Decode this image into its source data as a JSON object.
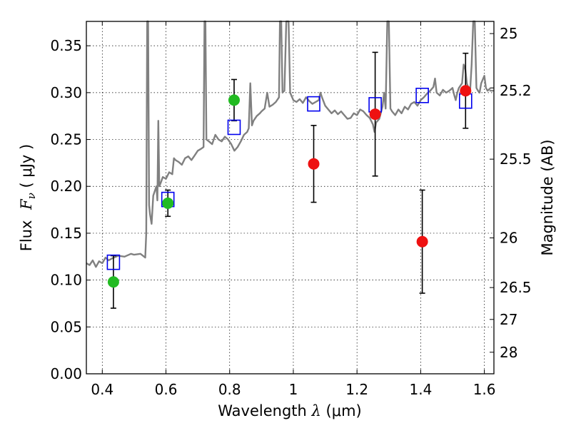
{
  "chart_data": {
    "type": "scatter",
    "xlabel_prefix": "Wavelength",
    "xlabel_symbol": "λ",
    "xlabel_suffix": "(μm)",
    "ylabel_prefix": "Flux",
    "ylabel_symbol": "F",
    "ylabel_sub": "ν",
    "ylabel_suffix": "(  μJy )",
    "y2label": "Magnitude (AB)",
    "xlim": [
      0.35,
      1.63
    ],
    "ylim": [
      0.0,
      0.376
    ],
    "xticks": [
      0.4,
      0.6,
      0.8,
      1.0,
      1.2,
      1.4,
      1.6
    ],
    "xtick_labels": [
      "0.4",
      "0.6",
      "0.8",
      "1",
      "1.2",
      "1.4",
      "1.6"
    ],
    "yticks": [
      0.0,
      0.05,
      0.1,
      0.15,
      0.2,
      0.25,
      0.3,
      0.35
    ],
    "ytick_labels": [
      "0.00",
      "0.05",
      "0.10",
      "0.15",
      "0.20",
      "0.25",
      "0.30",
      "0.35"
    ],
    "y2ticks": [
      {
        "label": "25",
        "flux": 0.363
      },
      {
        "label": "25.2",
        "flux": 0.302
      },
      {
        "label": "25.5",
        "flux": 0.229
      },
      {
        "label": "26",
        "flux": 0.145
      },
      {
        "label": "26.5",
        "flux": 0.092
      },
      {
        "label": "27",
        "flux": 0.058
      },
      {
        "label": "28",
        "flux": 0.023
      }
    ],
    "colors": {
      "model": "#808080",
      "green": "#22bb22",
      "red": "#ee1111",
      "blue": "#0000ee",
      "error": "#000000",
      "grid": "#000000"
    },
    "model_spectrum": [
      [
        0.35,
        0.118
      ],
      [
        0.36,
        0.116
      ],
      [
        0.37,
        0.121
      ],
      [
        0.38,
        0.114
      ],
      [
        0.39,
        0.12
      ],
      [
        0.4,
        0.118
      ],
      [
        0.41,
        0.124
      ],
      [
        0.42,
        0.121
      ],
      [
        0.43,
        0.123
      ],
      [
        0.45,
        0.126
      ],
      [
        0.47,
        0.125
      ],
      [
        0.49,
        0.128
      ],
      [
        0.5,
        0.127
      ],
      [
        0.52,
        0.128
      ],
      [
        0.535,
        0.124
      ],
      [
        0.538,
        0.15
      ],
      [
        0.541,
        0.376
      ],
      [
        0.544,
        0.376
      ],
      [
        0.547,
        0.18
      ],
      [
        0.55,
        0.17
      ],
      [
        0.555,
        0.16
      ],
      [
        0.56,
        0.19
      ],
      [
        0.565,
        0.195
      ],
      [
        0.57,
        0.2
      ],
      [
        0.573,
        0.185
      ],
      [
        0.576,
        0.27
      ],
      [
        0.579,
        0.2
      ],
      [
        0.585,
        0.205
      ],
      [
        0.59,
        0.21
      ],
      [
        0.6,
        0.208
      ],
      [
        0.61,
        0.215
      ],
      [
        0.62,
        0.213
      ],
      [
        0.625,
        0.23
      ],
      [
        0.63,
        0.228
      ],
      [
        0.64,
        0.226
      ],
      [
        0.65,
        0.223
      ],
      [
        0.66,
        0.23
      ],
      [
        0.67,
        0.232
      ],
      [
        0.68,
        0.228
      ],
      [
        0.69,
        0.233
      ],
      [
        0.7,
        0.238
      ],
      [
        0.71,
        0.24
      ],
      [
        0.718,
        0.242
      ],
      [
        0.721,
        0.376
      ],
      [
        0.724,
        0.376
      ],
      [
        0.727,
        0.25
      ],
      [
        0.735,
        0.248
      ],
      [
        0.745,
        0.245
      ],
      [
        0.755,
        0.255
      ],
      [
        0.765,
        0.25
      ],
      [
        0.775,
        0.248
      ],
      [
        0.785,
        0.253
      ],
      [
        0.795,
        0.25
      ],
      [
        0.805,
        0.245
      ],
      [
        0.815,
        0.238
      ],
      [
        0.825,
        0.242
      ],
      [
        0.835,
        0.248
      ],
      [
        0.845,
        0.255
      ],
      [
        0.855,
        0.258
      ],
      [
        0.86,
        0.262
      ],
      [
        0.865,
        0.31
      ],
      [
        0.87,
        0.265
      ],
      [
        0.875,
        0.27
      ],
      [
        0.885,
        0.275
      ],
      [
        0.895,
        0.278
      ],
      [
        0.9,
        0.28
      ],
      [
        0.91,
        0.283
      ],
      [
        0.918,
        0.3
      ],
      [
        0.925,
        0.285
      ],
      [
        0.935,
        0.287
      ],
      [
        0.945,
        0.29
      ],
      [
        0.955,
        0.295
      ],
      [
        0.958,
        0.376
      ],
      [
        0.962,
        0.376
      ],
      [
        0.966,
        0.3
      ],
      [
        0.972,
        0.302
      ],
      [
        0.978,
        0.376
      ],
      [
        0.985,
        0.376
      ],
      [
        0.99,
        0.3
      ],
      [
        1.0,
        0.292
      ],
      [
        1.01,
        0.29
      ],
      [
        1.02,
        0.293
      ],
      [
        1.03,
        0.289
      ],
      [
        1.04,
        0.295
      ],
      [
        1.05,
        0.291
      ],
      [
        1.06,
        0.288
      ],
      [
        1.07,
        0.29
      ],
      [
        1.08,
        0.292
      ],
      [
        1.085,
        0.3
      ],
      [
        1.09,
        0.295
      ],
      [
        1.1,
        0.286
      ],
      [
        1.11,
        0.282
      ],
      [
        1.12,
        0.278
      ],
      [
        1.13,
        0.281
      ],
      [
        1.14,
        0.277
      ],
      [
        1.15,
        0.28
      ],
      [
        1.16,
        0.276
      ],
      [
        1.17,
        0.272
      ],
      [
        1.18,
        0.273
      ],
      [
        1.19,
        0.278
      ],
      [
        1.2,
        0.276
      ],
      [
        1.21,
        0.282
      ],
      [
        1.22,
        0.28
      ],
      [
        1.23,
        0.276
      ],
      [
        1.24,
        0.273
      ],
      [
        1.25,
        0.266
      ],
      [
        1.255,
        0.258
      ],
      [
        1.26,
        0.268
      ],
      [
        1.27,
        0.272
      ],
      [
        1.28,
        0.285
      ],
      [
        1.285,
        0.3
      ],
      [
        1.29,
        0.283
      ],
      [
        1.295,
        0.376
      ],
      [
        1.3,
        0.376
      ],
      [
        1.305,
        0.283
      ],
      [
        1.31,
        0.28
      ],
      [
        1.32,
        0.276
      ],
      [
        1.33,
        0.282
      ],
      [
        1.34,
        0.278
      ],
      [
        1.35,
        0.285
      ],
      [
        1.36,
        0.282
      ],
      [
        1.37,
        0.288
      ],
      [
        1.38,
        0.29
      ],
      [
        1.39,
        0.286
      ],
      [
        1.4,
        0.292
      ],
      [
        1.41,
        0.295
      ],
      [
        1.42,
        0.299
      ],
      [
        1.43,
        0.302
      ],
      [
        1.44,
        0.306
      ],
      [
        1.445,
        0.315
      ],
      [
        1.45,
        0.3
      ],
      [
        1.46,
        0.297
      ],
      [
        1.47,
        0.303
      ],
      [
        1.48,
        0.3
      ],
      [
        1.49,
        0.302
      ],
      [
        1.5,
        0.305
      ],
      [
        1.505,
        0.298
      ],
      [
        1.51,
        0.292
      ],
      [
        1.515,
        0.3
      ],
      [
        1.52,
        0.305
      ],
      [
        1.53,
        0.31
      ],
      [
        1.535,
        0.33
      ],
      [
        1.54,
        0.325
      ],
      [
        1.545,
        0.31
      ],
      [
        1.55,
        0.305
      ],
      [
        1.555,
        0.3
      ],
      [
        1.56,
        0.33
      ],
      [
        1.565,
        0.376
      ],
      [
        1.57,
        0.376
      ],
      [
        1.575,
        0.305
      ],
      [
        1.58,
        0.302
      ],
      [
        1.585,
        0.3
      ],
      [
        1.59,
        0.31
      ],
      [
        1.6,
        0.318
      ],
      [
        1.605,
        0.305
      ],
      [
        1.61,
        0.302
      ],
      [
        1.62,
        0.305
      ],
      [
        1.63,
        0.305
      ]
    ],
    "model_photometry": [
      {
        "x": 0.435,
        "y": 0.119
      },
      {
        "x": 0.606,
        "y": 0.186
      },
      {
        "x": 0.814,
        "y": 0.263
      },
      {
        "x": 1.064,
        "y": 0.288
      },
      {
        "x": 1.257,
        "y": 0.287
      },
      {
        "x": 1.405,
        "y": 0.297
      },
      {
        "x": 1.541,
        "y": 0.291
      }
    ],
    "observed_optical": [
      {
        "x": 0.435,
        "y": 0.098,
        "err": 0.028
      },
      {
        "x": 0.606,
        "y": 0.182,
        "err": 0.014
      },
      {
        "x": 0.814,
        "y": 0.292,
        "err": 0.022
      }
    ],
    "observed_nir": [
      {
        "x": 1.064,
        "y": 0.224,
        "err": 0.041
      },
      {
        "x": 1.257,
        "y": 0.277,
        "err": 0.066
      },
      {
        "x": 1.405,
        "y": 0.141,
        "err": 0.055
      },
      {
        "x": 1.541,
        "y": 0.302,
        "err": 0.04
      }
    ]
  }
}
